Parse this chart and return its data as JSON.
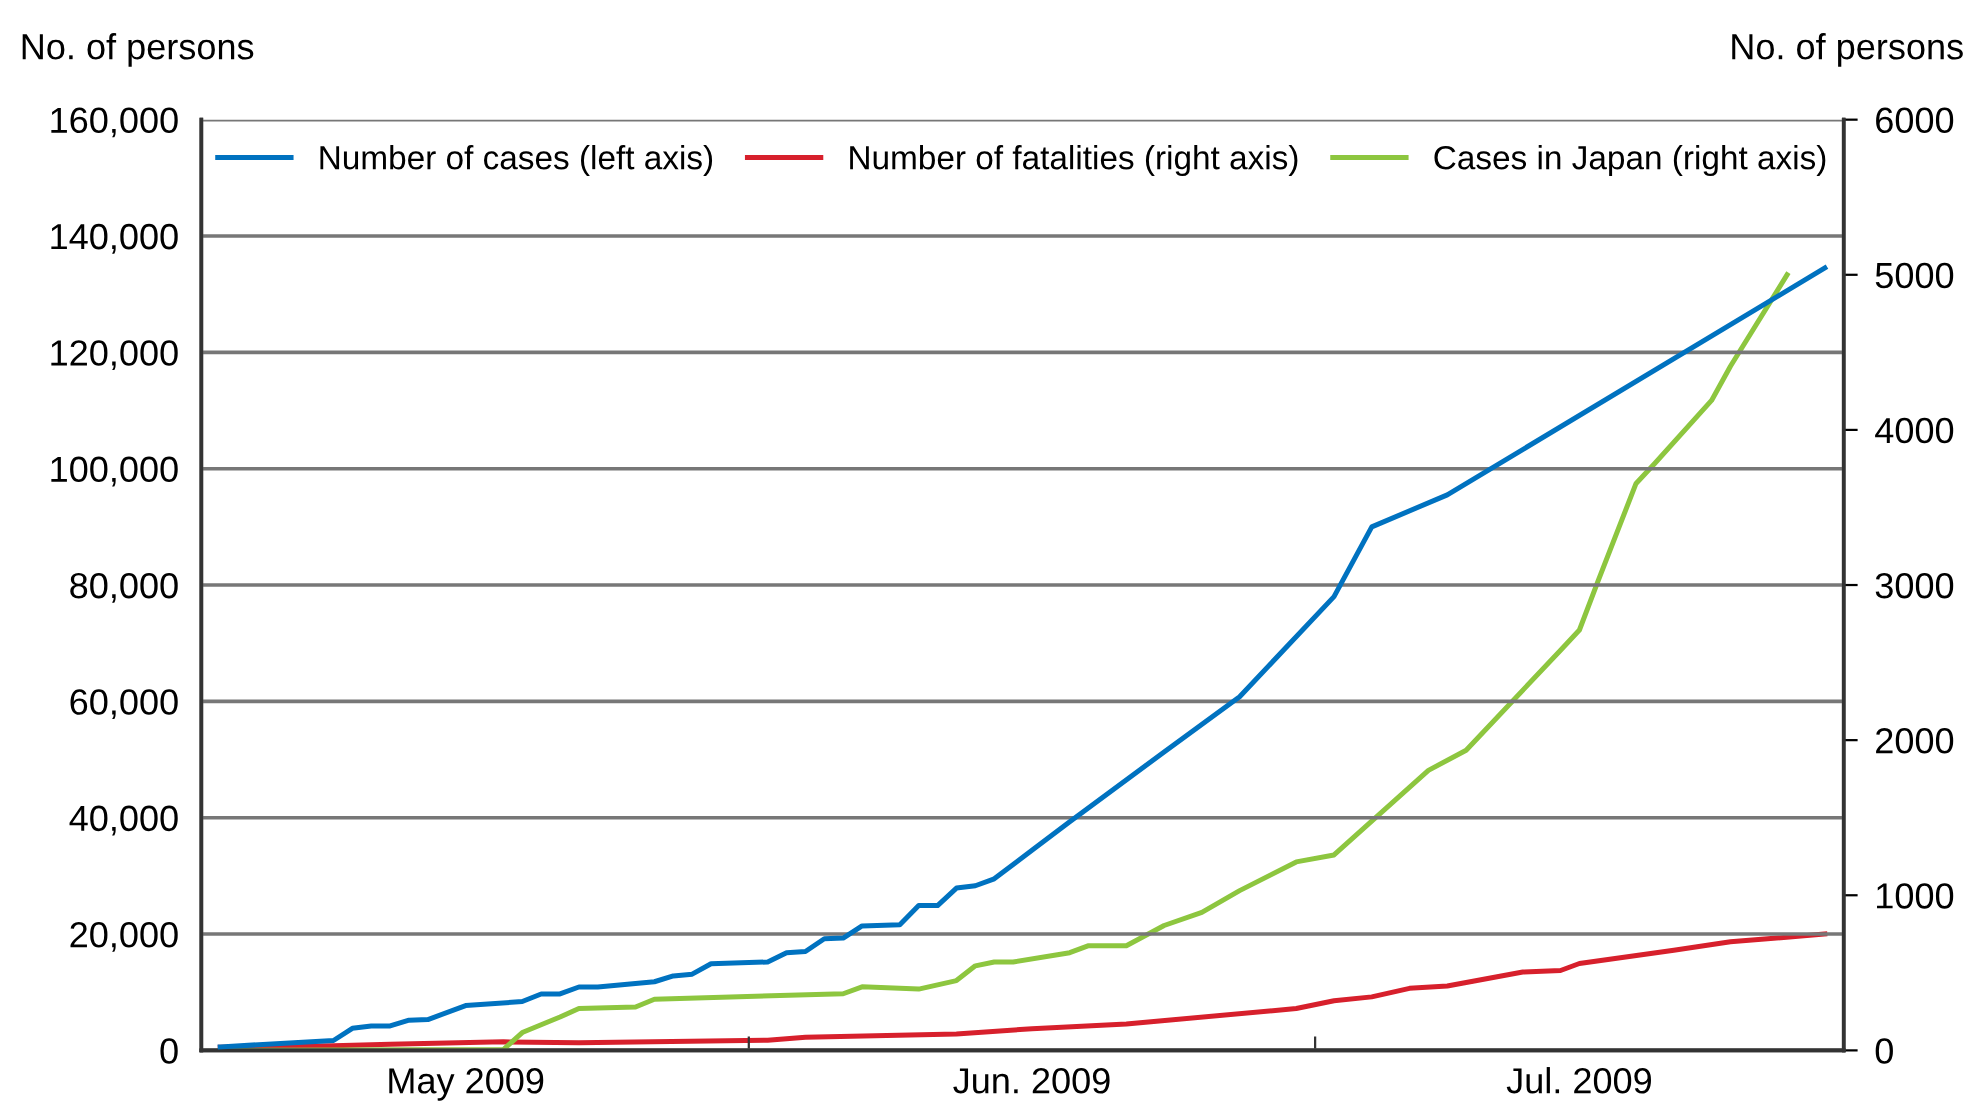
{
  "chart_data": {
    "type": "line",
    "ylabel": "No. of persons",
    "y2label": "No. of persons",
    "xlim": [
      "2009-05-03",
      "2009-07-29"
    ],
    "xticks": [
      {
        "value": "2009-06-01",
        "label": null
      },
      {
        "value": "2009-07-01",
        "label": null
      },
      {
        "value": "2009-05-17",
        "label": "May 2009"
      },
      {
        "value": "2009-06-16",
        "label": "Jun. 2009"
      },
      {
        "value": "2009-07-15",
        "label": "Jul. 2009"
      }
    ],
    "ylim": [
      0,
      160000
    ],
    "yticks": [
      0,
      {
        "value": 20000,
        "label": "20,000"
      },
      {
        "value": 40000,
        "label": "40,000"
      },
      {
        "value": 60000,
        "label": "60,000"
      },
      {
        "value": 80000,
        "label": "80,000"
      },
      {
        "value": 100000,
        "label": "100,000"
      },
      {
        "value": 120000,
        "label": "120,000"
      },
      {
        "value": 140000,
        "label": "140,000"
      },
      {
        "value": 160000,
        "label": "160,000"
      }
    ],
    "y2lim": [
      0,
      6000
    ],
    "y2ticks": [
      0,
      1000,
      2000,
      3000,
      4000,
      5000,
      6000
    ],
    "grid": "y",
    "legend": "top",
    "marker": "none",
    "line_style": "solid",
    "series": [
      {
        "name": "Number of cases (left axis)",
        "color": "#0072c0",
        "axis": "y",
        "x": [
          "2009-05-04",
          "2009-05-10",
          "2009-05-11",
          "2009-05-12",
          "2009-05-13",
          "2009-05-14",
          "2009-05-15",
          "2009-05-17",
          "2009-05-20",
          "2009-05-21",
          "2009-05-22",
          "2009-05-23",
          "2009-05-24",
          "2009-05-27",
          "2009-05-28",
          "2009-05-29",
          "2009-05-30",
          "2009-06-02",
          "2009-06-03",
          "2009-06-04",
          "2009-06-05",
          "2009-06-06",
          "2009-06-07",
          "2009-06-09",
          "2009-06-10",
          "2009-06-11",
          "2009-06-12",
          "2009-06-13",
          "2009-06-14",
          "2009-06-16",
          "2009-06-18",
          "2009-06-23",
          "2009-06-27",
          "2009-07-02",
          "2009-07-04",
          "2009-07-08",
          "2009-07-28"
        ],
        "values": [
          600,
          1700,
          3800,
          4200,
          4200,
          5200,
          5300,
          7700,
          8400,
          9700,
          9700,
          10900,
          10900,
          11800,
          12800,
          13100,
          14900,
          15200,
          16800,
          17000,
          19200,
          19300,
          21400,
          21600,
          24900,
          24900,
          27900,
          28300,
          29500,
          34400,
          39300,
          51300,
          60800,
          78000,
          90000,
          95500,
          134500
        ]
      },
      {
        "name": "Number of fatalities (right axis)",
        "color": "#d7202c",
        "axis": "y2",
        "x": [
          "2009-05-04",
          "2009-05-10",
          "2009-05-13",
          "2009-05-19",
          "2009-05-23",
          "2009-06-02",
          "2009-06-04",
          "2009-06-12",
          "2009-06-16",
          "2009-06-21",
          "2009-06-30",
          "2009-07-02",
          "2009-07-04",
          "2009-07-06",
          "2009-07-08",
          "2009-07-12",
          "2009-07-14",
          "2009-07-15",
          "2009-07-20",
          "2009-07-23",
          "2009-07-28"
        ],
        "values": [
          20,
          30,
          40,
          55,
          50,
          65,
          85,
          105,
          140,
          170,
          270,
          320,
          345,
          400,
          415,
          505,
          515,
          560,
          645,
          700,
          750
        ]
      },
      {
        "name": "Cases in Japan (right axis)",
        "color": "#8dc63f",
        "axis": "y2",
        "x": [
          "2009-05-04",
          "2009-05-19",
          "2009-05-20",
          "2009-05-22",
          "2009-05-23",
          "2009-05-26",
          "2009-05-27",
          "2009-06-06",
          "2009-06-07",
          "2009-06-10",
          "2009-06-12",
          "2009-06-13",
          "2009-06-14",
          "2009-06-15",
          "2009-06-18",
          "2009-06-19",
          "2009-06-21",
          "2009-06-23",
          "2009-06-25",
          "2009-06-27",
          "2009-06-30",
          "2009-07-02",
          "2009-07-07",
          "2009-07-09",
          "2009-07-14",
          "2009-07-15",
          "2009-07-16",
          "2009-07-18",
          "2009-07-19",
          "2009-07-22",
          "2009-07-23",
          "2009-07-26"
        ],
        "values": [
          0,
          5,
          115,
          215,
          270,
          280,
          330,
          365,
          410,
          395,
          450,
          545,
          570,
          570,
          630,
          675,
          675,
          805,
          890,
          1030,
          1215,
          1260,
          1805,
          1935,
          2580,
          2710,
          3030,
          3655,
          3785,
          4190,
          4410,
          5000
        ]
      }
    ]
  }
}
